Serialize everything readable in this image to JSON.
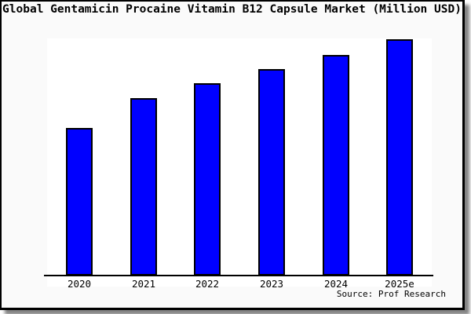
{
  "chart_data": {
    "type": "bar",
    "title": "Global Gentamicin Procaine Vitamin B12 Capsule Market (Million USD)",
    "categories": [
      "2020",
      "2021",
      "2022",
      "2023",
      "2024",
      "2025e"
    ],
    "values": [
      62.5,
      75,
      81.5,
      87.5,
      93.5,
      100
    ],
    "value_note": "no y-axis scale, gridlines or data labels shown; values are bar heights normalized to 2025e = 100",
    "xlabel": "",
    "ylabel": "",
    "ylim": [
      0,
      104.5
    ],
    "grid": false,
    "legend": false,
    "bar_color": "#0000ff",
    "bar_border_color": "#000000",
    "figure_background": "#fafafa",
    "plot_background": "#ffffff",
    "source": "Source: Prof Research"
  }
}
